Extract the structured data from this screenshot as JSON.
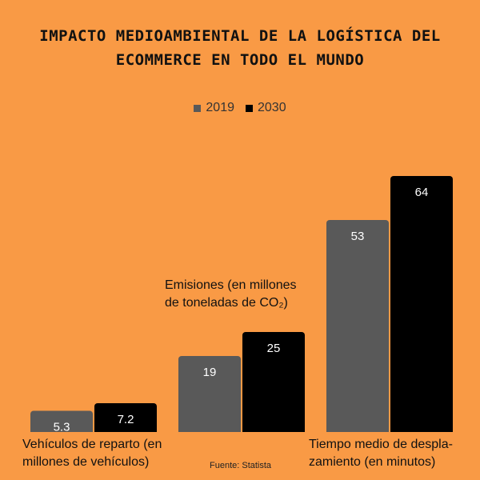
{
  "title_line1": "IMPACTO MEDIOAMBIENTAL DE LA LOGÍSTICA DEL",
  "title_line2": "ECOMMERCE EN TODO EL MUNDO",
  "source": "Fuente: Statista",
  "colors": {
    "background": "#f99a45",
    "series_2019": "#595959",
    "series_2030": "#000000"
  },
  "chart_data": {
    "type": "bar",
    "title": "IMPACTO MEDIOAMBIENTAL DE LA LOGÍSTICA DEL ECOMMERCE EN TODO EL MUNDO",
    "categories": [
      "Vehículos de reparto (en millones de vehículos)",
      "Emisiones (en millones de toneladas de CO₂)",
      "Tiempo medio de desplazamiento (en minutos)"
    ],
    "category_labels": {
      "c0_line1": "Vehículos de reparto (en",
      "c0_line2": "millones de vehículos)",
      "c1_line1": "Emisiones (en millones",
      "c1_line2": "de toneladas de CO₂)",
      "c2_line1": "Tiempo medio de despla-",
      "c2_line2": "zamiento (en minutos)"
    },
    "series": [
      {
        "name": "2019",
        "values": [
          5.3,
          19,
          53
        ]
      },
      {
        "name": "2030",
        "values": [
          7.2,
          25,
          64
        ]
      }
    ],
    "legend_position": "top-center",
    "grid": false,
    "ylim": [
      0,
      70
    ]
  }
}
